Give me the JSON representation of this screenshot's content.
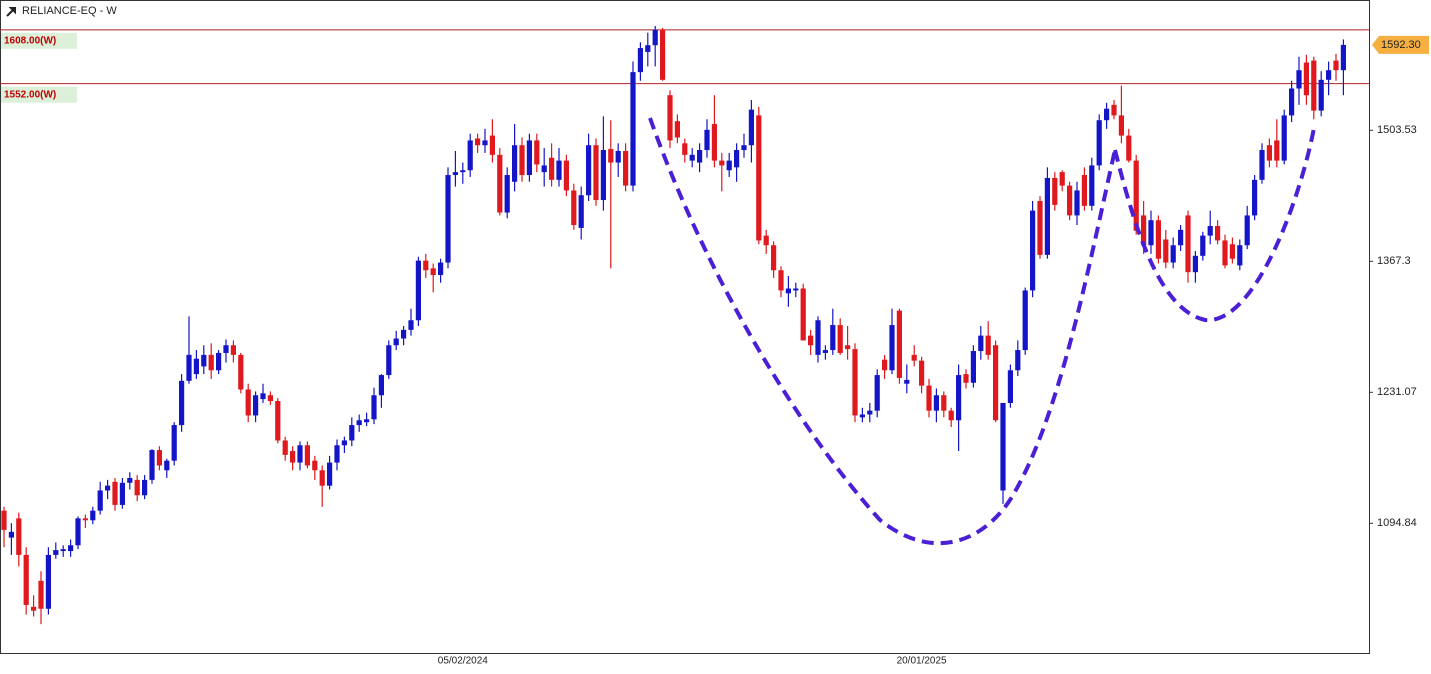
{
  "chart_data": {
    "type": "candlestick",
    "title": "RELIANCE-EQ - W",
    "up_color": "#1515c8",
    "down_color": "#e0191e",
    "ylim": [
      960,
      1639
    ],
    "yticks": [
      1503.53,
      1367.3,
      1231.07,
      1094.84
    ],
    "grid": false,
    "levels": [
      {
        "value": 1608,
        "label": "1608.00(W)",
        "color": "#b22222"
      },
      {
        "value": 1552,
        "label": "1552.00(W)",
        "color": "#b22222"
      }
    ],
    "last_price": {
      "value": 1592.3,
      "label": "1592.30",
      "color": "#f5b041"
    },
    "categories": [
      null,
      null,
      null,
      null,
      null,
      null,
      null,
      null,
      null,
      null,
      null,
      null,
      null,
      null,
      null,
      null,
      null,
      null,
      null,
      null,
      null,
      null,
      null,
      null,
      null,
      null,
      null,
      null,
      null,
      null,
      null,
      null,
      null,
      null,
      null,
      null,
      null,
      null,
      null,
      null,
      null,
      null,
      null,
      null,
      null,
      null,
      null,
      null,
      null,
      null,
      null,
      null,
      null,
      null,
      null,
      null,
      null,
      null,
      null,
      null,
      null,
      null,
      "05/02/2024",
      null,
      null,
      null,
      null,
      null,
      null,
      null,
      null,
      null,
      null,
      null,
      null,
      null,
      null,
      null,
      null,
      null,
      null,
      null,
      null,
      null,
      null,
      null,
      null,
      null,
      null,
      null,
      null,
      null,
      null,
      null,
      null,
      null,
      null,
      null,
      null,
      null,
      null,
      null,
      null,
      null,
      null,
      null,
      null,
      null,
      null,
      null,
      null,
      null,
      null,
      null,
      null,
      null,
      null,
      null,
      null,
      null,
      null,
      null,
      null,
      null,
      "20/01/2025",
      null,
      null,
      null,
      null,
      null,
      null,
      null,
      null,
      null,
      null,
      null,
      null,
      null,
      null,
      null,
      null,
      null,
      null,
      null,
      null,
      null,
      null,
      null,
      null,
      null,
      null,
      null,
      null,
      null,
      null,
      null,
      null,
      null,
      null,
      null,
      null,
      null,
      null,
      null,
      null,
      null,
      null,
      null,
      null,
      null,
      null,
      null,
      null,
      null,
      null,
      null,
      null,
      null,
      null,
      null,
      null,
      null
    ],
    "candles": [
      [
        1108,
        1112,
        1070,
        1088
      ],
      [
        1080,
        1095,
        1062,
        1086
      ],
      [
        1100,
        1106,
        1050,
        1062
      ],
      [
        1062,
        1070,
        1000,
        1010
      ],
      [
        1008,
        1020,
        998,
        1004
      ],
      [
        1035,
        1045,
        990,
        1006
      ],
      [
        1006,
        1070,
        1000,
        1062
      ],
      [
        1062,
        1075,
        1058,
        1067
      ],
      [
        1066,
        1072,
        1060,
        1068
      ],
      [
        1066,
        1078,
        1060,
        1072
      ],
      [
        1072,
        1102,
        1068,
        1100
      ],
      [
        1100,
        1104,
        1090,
        1098
      ],
      [
        1098,
        1112,
        1094,
        1108
      ],
      [
        1108,
        1138,
        1104,
        1129
      ],
      [
        1129,
        1140,
        1120,
        1134
      ],
      [
        1138,
        1142,
        1108,
        1114
      ],
      [
        1114,
        1142,
        1110,
        1137
      ],
      [
        1137,
        1148,
        1130,
        1142
      ],
      [
        1140,
        1145,
        1118,
        1124
      ],
      [
        1124,
        1145,
        1120,
        1140
      ],
      [
        1140,
        1172,
        1136,
        1171
      ],
      [
        1171,
        1175,
        1150,
        1155
      ],
      [
        1150,
        1162,
        1142,
        1160
      ],
      [
        1160,
        1200,
        1155,
        1197
      ],
      [
        1197,
        1250,
        1190,
        1243
      ],
      [
        1243,
        1310,
        1240,
        1270
      ],
      [
        1250,
        1275,
        1245,
        1266
      ],
      [
        1258,
        1280,
        1250,
        1270
      ],
      [
        1270,
        1282,
        1245,
        1254
      ],
      [
        1254,
        1275,
        1250,
        1272
      ],
      [
        1272,
        1286,
        1262,
        1280
      ],
      [
        1280,
        1285,
        1262,
        1270
      ],
      [
        1270,
        1272,
        1230,
        1234
      ],
      [
        1234,
        1240,
        1200,
        1207
      ],
      [
        1207,
        1232,
        1200,
        1228
      ],
      [
        1224,
        1240,
        1220,
        1230
      ],
      [
        1228,
        1232,
        1218,
        1222
      ],
      [
        1222,
        1225,
        1178,
        1181
      ],
      [
        1181,
        1185,
        1160,
        1166
      ],
      [
        1170,
        1175,
        1150,
        1158
      ],
      [
        1158,
        1180,
        1150,
        1176
      ],
      [
        1176,
        1180,
        1152,
        1155
      ],
      [
        1160,
        1165,
        1140,
        1150
      ],
      [
        1150,
        1155,
        1112,
        1134
      ],
      [
        1134,
        1165,
        1130,
        1158
      ],
      [
        1158,
        1182,
        1150,
        1176
      ],
      [
        1176,
        1185,
        1168,
        1181
      ],
      [
        1181,
        1205,
        1175,
        1197
      ],
      [
        1197,
        1208,
        1190,
        1202
      ],
      [
        1200,
        1210,
        1196,
        1203
      ],
      [
        1203,
        1236,
        1198,
        1228
      ],
      [
        1228,
        1250,
        1215,
        1249
      ],
      [
        1249,
        1285,
        1245,
        1280
      ],
      [
        1280,
        1295,
        1275,
        1287
      ],
      [
        1287,
        1300,
        1280,
        1296
      ],
      [
        1296,
        1318,
        1290,
        1306
      ],
      [
        1306,
        1372,
        1300,
        1368
      ],
      [
        1368,
        1375,
        1350,
        1358
      ],
      [
        1360,
        1365,
        1335,
        1353
      ],
      [
        1353,
        1370,
        1345,
        1366
      ],
      [
        1366,
        1465,
        1360,
        1457
      ],
      [
        1457,
        1482,
        1445,
        1460
      ],
      [
        1460,
        1470,
        1448,
        1462
      ],
      [
        1462,
        1500,
        1455,
        1493
      ],
      [
        1495,
        1500,
        1480,
        1488
      ],
      [
        1488,
        1505,
        1480,
        1493
      ],
      [
        1498,
        1515,
        1470,
        1478
      ],
      [
        1478,
        1485,
        1415,
        1418
      ],
      [
        1418,
        1465,
        1412,
        1457
      ],
      [
        1450,
        1510,
        1440,
        1488
      ],
      [
        1488,
        1496,
        1450,
        1457
      ],
      [
        1457,
        1500,
        1450,
        1493
      ],
      [
        1493,
        1500,
        1460,
        1468
      ],
      [
        1460,
        1485,
        1445,
        1467
      ],
      [
        1475,
        1490,
        1445,
        1452
      ],
      [
        1452,
        1485,
        1445,
        1472
      ],
      [
        1472,
        1478,
        1435,
        1441
      ],
      [
        1441,
        1448,
        1400,
        1405
      ],
      [
        1402,
        1445,
        1390,
        1436
      ],
      [
        1436,
        1500,
        1430,
        1488
      ],
      [
        1488,
        1495,
        1425,
        1431
      ],
      [
        1431,
        1518,
        1420,
        1483
      ],
      [
        1484,
        1514,
        1360,
        1470
      ],
      [
        1470,
        1490,
        1455,
        1482
      ],
      [
        1482,
        1490,
        1440,
        1446
      ],
      [
        1446,
        1575,
        1440,
        1564
      ],
      [
        1564,
        1595,
        1555,
        1589
      ],
      [
        1585,
        1605,
        1570,
        1592
      ],
      [
        1592,
        1612,
        1570,
        1608
      ],
      [
        1608,
        1610,
        1555,
        1556
      ],
      [
        1540,
        1545,
        1485,
        1493
      ],
      [
        1513,
        1520,
        1490,
        1496
      ],
      [
        1490,
        1495,
        1470,
        1478
      ],
      [
        1472,
        1485,
        1465,
        1478
      ],
      [
        1470,
        1490,
        1460,
        1483
      ],
      [
        1483,
        1515,
        1475,
        1504
      ],
      [
        1510,
        1540,
        1465,
        1472
      ],
      [
        1472,
        1480,
        1440,
        1467
      ],
      [
        1462,
        1480,
        1455,
        1472
      ],
      [
        1465,
        1490,
        1450,
        1483
      ],
      [
        1483,
        1500,
        1475,
        1488
      ],
      [
        1488,
        1535,
        1470,
        1525
      ],
      [
        1519,
        1528,
        1385,
        1389
      ],
      [
        1394,
        1400,
        1375,
        1384
      ],
      [
        1384,
        1388,
        1350,
        1358
      ],
      [
        1358,
        1362,
        1330,
        1337
      ],
      [
        1334,
        1352,
        1320,
        1339
      ],
      [
        1337,
        1345,
        1330,
        1339
      ],
      [
        1339,
        1344,
        1285,
        1285
      ],
      [
        1290,
        1296,
        1270,
        1280
      ],
      [
        1270,
        1310,
        1262,
        1306
      ],
      [
        1272,
        1280,
        1265,
        1275
      ],
      [
        1275,
        1318,
        1270,
        1301
      ],
      [
        1301,
        1308,
        1270,
        1272
      ],
      [
        1280,
        1300,
        1265,
        1276
      ],
      [
        1276,
        1282,
        1200,
        1207
      ],
      [
        1205,
        1215,
        1200,
        1208
      ],
      [
        1208,
        1220,
        1200,
        1212
      ],
      [
        1212,
        1255,
        1205,
        1249
      ],
      [
        1265,
        1270,
        1245,
        1254
      ],
      [
        1254,
        1318,
        1250,
        1301
      ],
      [
        1316,
        1318,
        1240,
        1246
      ],
      [
        1240,
        1260,
        1230,
        1244
      ],
      [
        1270,
        1280,
        1258,
        1264
      ],
      [
        1264,
        1268,
        1230,
        1238
      ],
      [
        1238,
        1245,
        1205,
        1212
      ],
      [
        1212,
        1235,
        1200,
        1228
      ],
      [
        1228,
        1232,
        1205,
        1212
      ],
      [
        1212,
        1215,
        1195,
        1202
      ],
      [
        1202,
        1260,
        1170,
        1249
      ],
      [
        1250,
        1255,
        1235,
        1241
      ],
      [
        1241,
        1280,
        1236,
        1274
      ],
      [
        1274,
        1300,
        1265,
        1290
      ],
      [
        1290,
        1305,
        1265,
        1270
      ],
      [
        1280,
        1285,
        1200,
        1202
      ],
      [
        1129,
        1220,
        1115,
        1220
      ],
      [
        1220,
        1260,
        1215,
        1254
      ],
      [
        1254,
        1285,
        1248,
        1275
      ],
      [
        1275,
        1340,
        1270,
        1337
      ],
      [
        1337,
        1430,
        1330,
        1420
      ],
      [
        1430,
        1435,
        1370,
        1374
      ],
      [
        1374,
        1465,
        1370,
        1454
      ],
      [
        1454,
        1460,
        1420,
        1426
      ],
      [
        1460,
        1462,
        1440,
        1446
      ],
      [
        1446,
        1450,
        1410,
        1415
      ],
      [
        1415,
        1450,
        1405,
        1441
      ],
      [
        1457,
        1465,
        1420,
        1425
      ],
      [
        1425,
        1475,
        1420,
        1467
      ],
      [
        1467,
        1520,
        1462,
        1514
      ],
      [
        1514,
        1532,
        1505,
        1526
      ],
      [
        1530,
        1535,
        1515,
        1519
      ],
      [
        1519,
        1550,
        1490,
        1498
      ],
      [
        1498,
        1505,
        1470,
        1472
      ],
      [
        1472,
        1478,
        1395,
        1399
      ],
      [
        1415,
        1430,
        1375,
        1384
      ],
      [
        1384,
        1420,
        1375,
        1410
      ],
      [
        1410,
        1415,
        1365,
        1370
      ],
      [
        1390,
        1400,
        1360,
        1366
      ],
      [
        1366,
        1392,
        1360,
        1384
      ],
      [
        1384,
        1405,
        1378,
        1400
      ],
      [
        1415,
        1420,
        1345,
        1356
      ],
      [
        1356,
        1378,
        1345,
        1373
      ],
      [
        1373,
        1398,
        1368,
        1394
      ],
      [
        1394,
        1420,
        1385,
        1404
      ],
      [
        1404,
        1410,
        1385,
        1389
      ],
      [
        1389,
        1395,
        1360,
        1363
      ],
      [
        1385,
        1392,
        1365,
        1370
      ],
      [
        1363,
        1390,
        1358,
        1384
      ],
      [
        1384,
        1425,
        1380,
        1415
      ],
      [
        1415,
        1457,
        1410,
        1452
      ],
      [
        1452,
        1490,
        1448,
        1483
      ],
      [
        1488,
        1495,
        1465,
        1472
      ],
      [
        1493,
        1515,
        1465,
        1472
      ],
      [
        1472,
        1525,
        1468,
        1519
      ],
      [
        1519,
        1555,
        1512,
        1547
      ],
      [
        1547,
        1580,
        1530,
        1566
      ],
      [
        1574,
        1582,
        1530,
        1540
      ],
      [
        1576,
        1580,
        1515,
        1524
      ],
      [
        1524,
        1565,
        1518,
        1556
      ],
      [
        1556,
        1575,
        1540,
        1566
      ],
      [
        1576,
        1583,
        1555,
        1566
      ],
      [
        1566,
        1598,
        1540,
        1592.3
      ]
    ]
  }
}
